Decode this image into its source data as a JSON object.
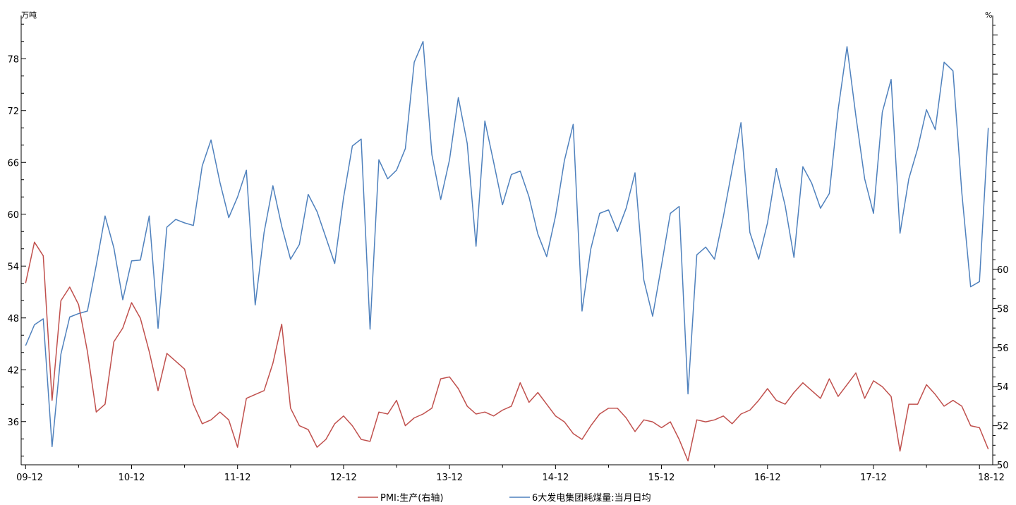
{
  "chart_data": {
    "type": "line",
    "title": "",
    "y_left_unit": "万吨",
    "y_right_unit": "%",
    "y_left_range": [
      31,
      83
    ],
    "y_right_range": [
      50,
      73
    ],
    "y_left_ticks": [
      36,
      42,
      48,
      54,
      60,
      66,
      72,
      78
    ],
    "y_right_ticks": [
      50,
      52,
      54,
      56,
      58,
      60
    ],
    "x_tick_labels": [
      "09-12",
      "10-12",
      "11-12",
      "12-12",
      "13-12",
      "14-12",
      "15-12",
      "16-12",
      "17-12",
      "18-12"
    ],
    "x_start": "2009-12",
    "legend": {
      "position": "bottom",
      "items": [
        "PMI:生产(右轴)",
        "6大发电集团耗煤量:当月日均"
      ]
    },
    "series": [
      {
        "name": "6大发电集团耗煤量:当月日均",
        "axis": "left",
        "color": "#4F81BD",
        "values": [
          44.8,
          47.2,
          47.9,
          33.1,
          43.8,
          48.1,
          48.5,
          48.8,
          54.1,
          59.8,
          56.1,
          50.1,
          54.6,
          54.7,
          59.8,
          46.8,
          58.5,
          59.4,
          59.0,
          58.7,
          65.6,
          68.6,
          63.7,
          59.6,
          62.0,
          65.1,
          49.5,
          57.9,
          63.3,
          58.6,
          54.8,
          56.5,
          62.3,
          60.3,
          57.3,
          54.3,
          61.9,
          67.9,
          68.7,
          46.7,
          66.3,
          64.1,
          65.1,
          67.6,
          77.6,
          80.0,
          66.9,
          61.7,
          66.3,
          73.5,
          68.2,
          56.3,
          70.8,
          66.0,
          61.1,
          64.6,
          65.0,
          62.0,
          57.7,
          55.1,
          59.8,
          66.2,
          70.4,
          48.8,
          56.0,
          60.1,
          60.5,
          58.0,
          60.7,
          64.8,
          52.4,
          48.2,
          54.1,
          60.1,
          60.9,
          39.2,
          55.3,
          56.2,
          54.8,
          59.7,
          65.2,
          70.6,
          57.9,
          54.8,
          59.0,
          65.3,
          61.0,
          55.0,
          65.5,
          63.6,
          60.7,
          62.4,
          72.1,
          79.4,
          71.4,
          64.1,
          60.1,
          71.8,
          75.6,
          57.8,
          64.1,
          67.6,
          72.1,
          69.8,
          77.6,
          76.6,
          62.5,
          51.6,
          52.2,
          70.0
        ]
      },
      {
        "name": "PMI:生产(右轴)",
        "axis": "right",
        "color": "#C0504D",
        "values": [
          59.3,
          61.4,
          60.7,
          53.3,
          58.4,
          59.1,
          58.2,
          55.8,
          52.7,
          53.1,
          56.3,
          57.0,
          58.3,
          57.5,
          55.8,
          53.8,
          55.7,
          55.3,
          54.9,
          53.1,
          52.1,
          52.3,
          52.7,
          52.3,
          50.9,
          53.4,
          53.6,
          53.8,
          55.2,
          57.2,
          52.9,
          52.0,
          51.8,
          50.9,
          51.3,
          52.1,
          52.5,
          52.0,
          51.3,
          51.2,
          52.7,
          52.6,
          53.3,
          52.0,
          52.4,
          52.6,
          52.9,
          54.4,
          54.5,
          53.9,
          53.0,
          52.6,
          52.7,
          52.5,
          52.8,
          53.0,
          54.2,
          53.2,
          53.7,
          53.1,
          52.5,
          52.2,
          51.6,
          51.3,
          52.0,
          52.6,
          52.9,
          52.9,
          52.4,
          51.7,
          52.3,
          52.2,
          51.9,
          52.2,
          51.3,
          50.2,
          52.3,
          52.2,
          52.3,
          52.5,
          52.1,
          52.6,
          52.8,
          53.3,
          53.9,
          53.3,
          53.1,
          53.7,
          54.2,
          53.8,
          53.4,
          54.4,
          53.5,
          54.1,
          54.7,
          53.4,
          54.3,
          54.0,
          53.5,
          50.7,
          53.1,
          53.1,
          54.1,
          53.6,
          53.0,
          53.3,
          53.0,
          52.0,
          51.9,
          50.8
        ]
      }
    ]
  }
}
